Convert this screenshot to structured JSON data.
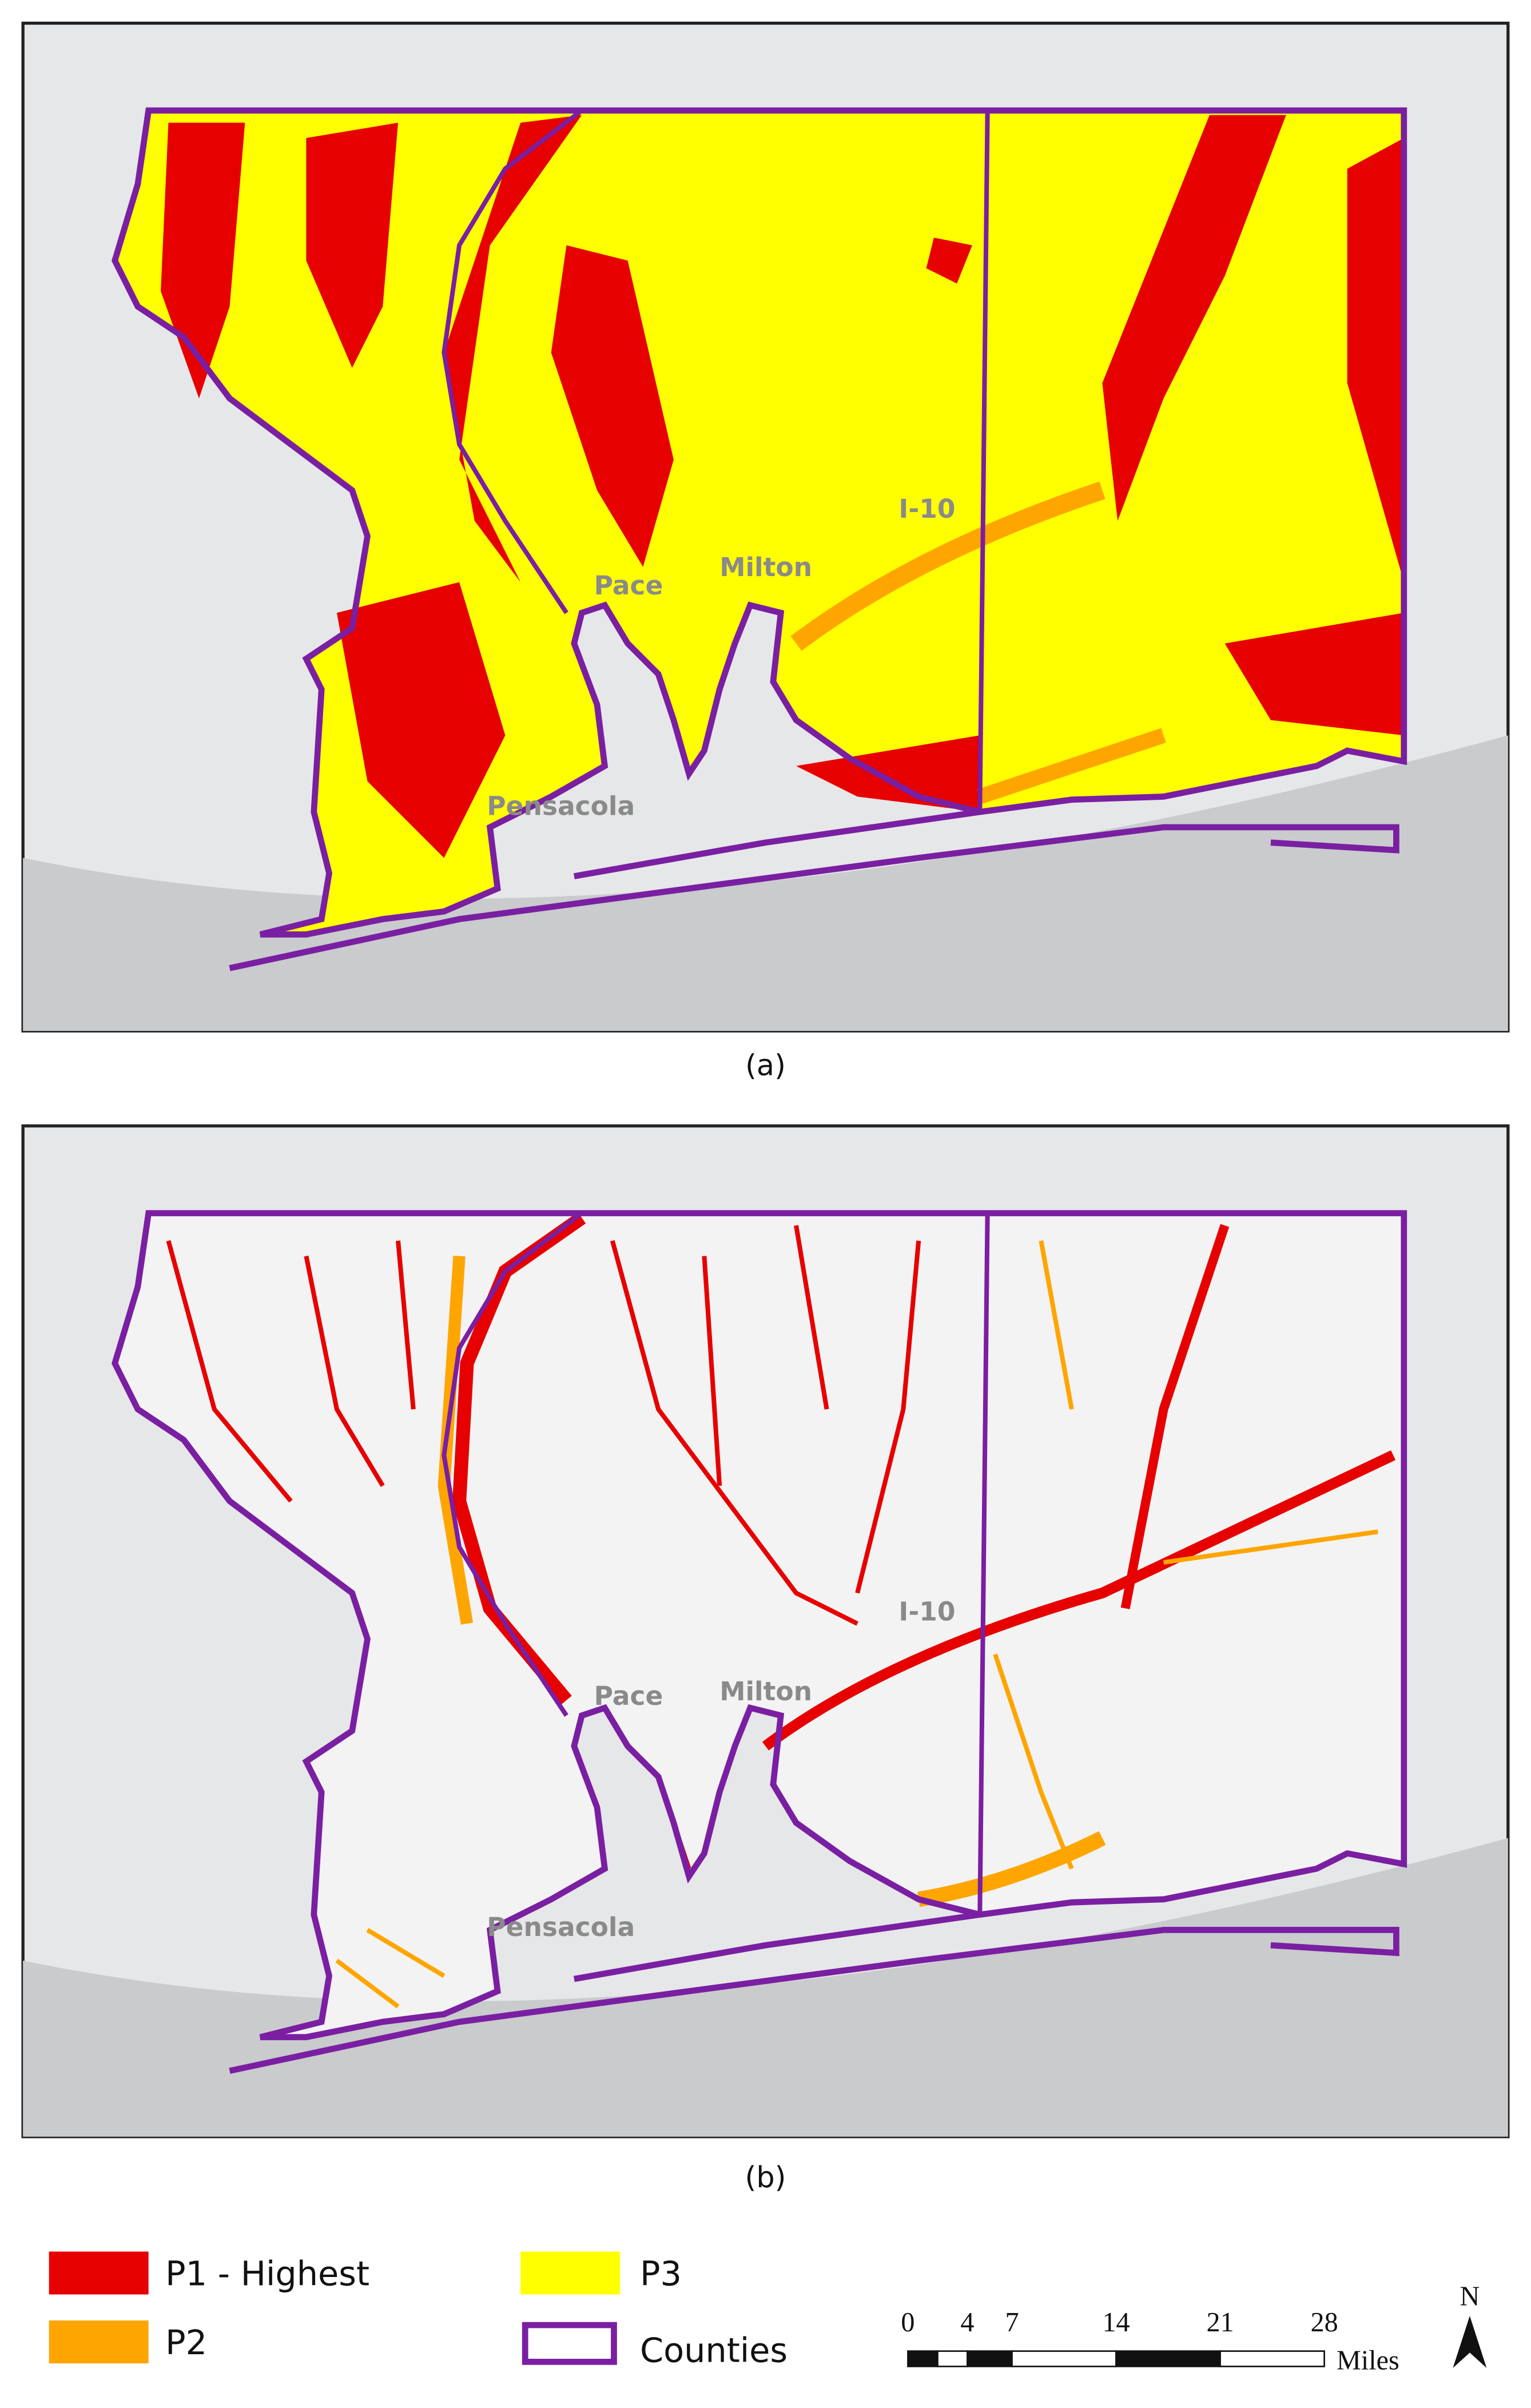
{
  "panels": [
    {
      "caption": "(a)",
      "labels": {
        "highway": "I-10",
        "pace": "Pace",
        "milton": "Milton",
        "city": "Pensacola"
      }
    },
    {
      "caption": "(b)",
      "labels": {
        "highway": "I-10",
        "pace": "Pace",
        "milton": "Milton",
        "city": "Pensacola"
      }
    }
  ],
  "legend": {
    "items": [
      "P1 - Highest",
      "P2",
      "P3",
      "Counties"
    ]
  },
  "scale_bar": {
    "ticks": [
      0,
      4,
      7,
      14,
      21,
      28
    ],
    "unit": "Miles"
  },
  "north": "N"
}
